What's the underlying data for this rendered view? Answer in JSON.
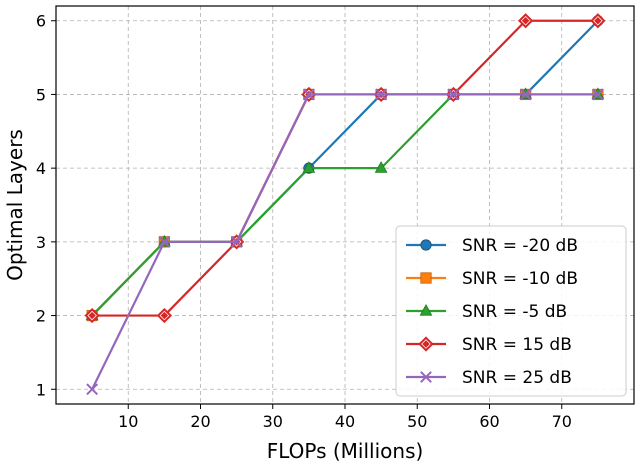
{
  "chart_data": {
    "type": "line",
    "xlabel": "FLOPs (Millions)",
    "ylabel": "Optimal Layers",
    "x": [
      5,
      15,
      25,
      35,
      45,
      55,
      65,
      75
    ],
    "xlim": [
      0,
      80
    ],
    "ylim": [
      0.8,
      6.2
    ],
    "xticks": [
      10,
      20,
      30,
      40,
      50,
      60,
      70
    ],
    "yticks": [
      1,
      2,
      3,
      4,
      5,
      6
    ],
    "grid": true,
    "legend_position": "lower-right",
    "series": [
      {
        "name": "SNR = -20 dB",
        "color": "#1f77b4",
        "marker": "circle",
        "values": [
          2,
          3,
          3,
          4,
          5,
          5,
          5,
          6
        ]
      },
      {
        "name": "SNR = -10 dB",
        "color": "#ff7f0e",
        "marker": "square",
        "values": [
          2,
          3,
          3,
          5,
          5,
          5,
          5,
          5
        ]
      },
      {
        "name": "SNR = -5 dB",
        "color": "#2ca02c",
        "marker": "triangle",
        "values": [
          2,
          3,
          3,
          4,
          4,
          5,
          5,
          5
        ]
      },
      {
        "name": "SNR = 15 dB",
        "color": "#d62728",
        "marker": "diamond",
        "values": [
          2,
          2,
          3,
          5,
          5,
          5,
          6,
          6
        ]
      },
      {
        "name": "SNR = 25 dB",
        "color": "#9467bd",
        "marker": "x",
        "values": [
          1,
          3,
          3,
          5,
          5,
          5,
          5,
          5
        ]
      }
    ]
  }
}
